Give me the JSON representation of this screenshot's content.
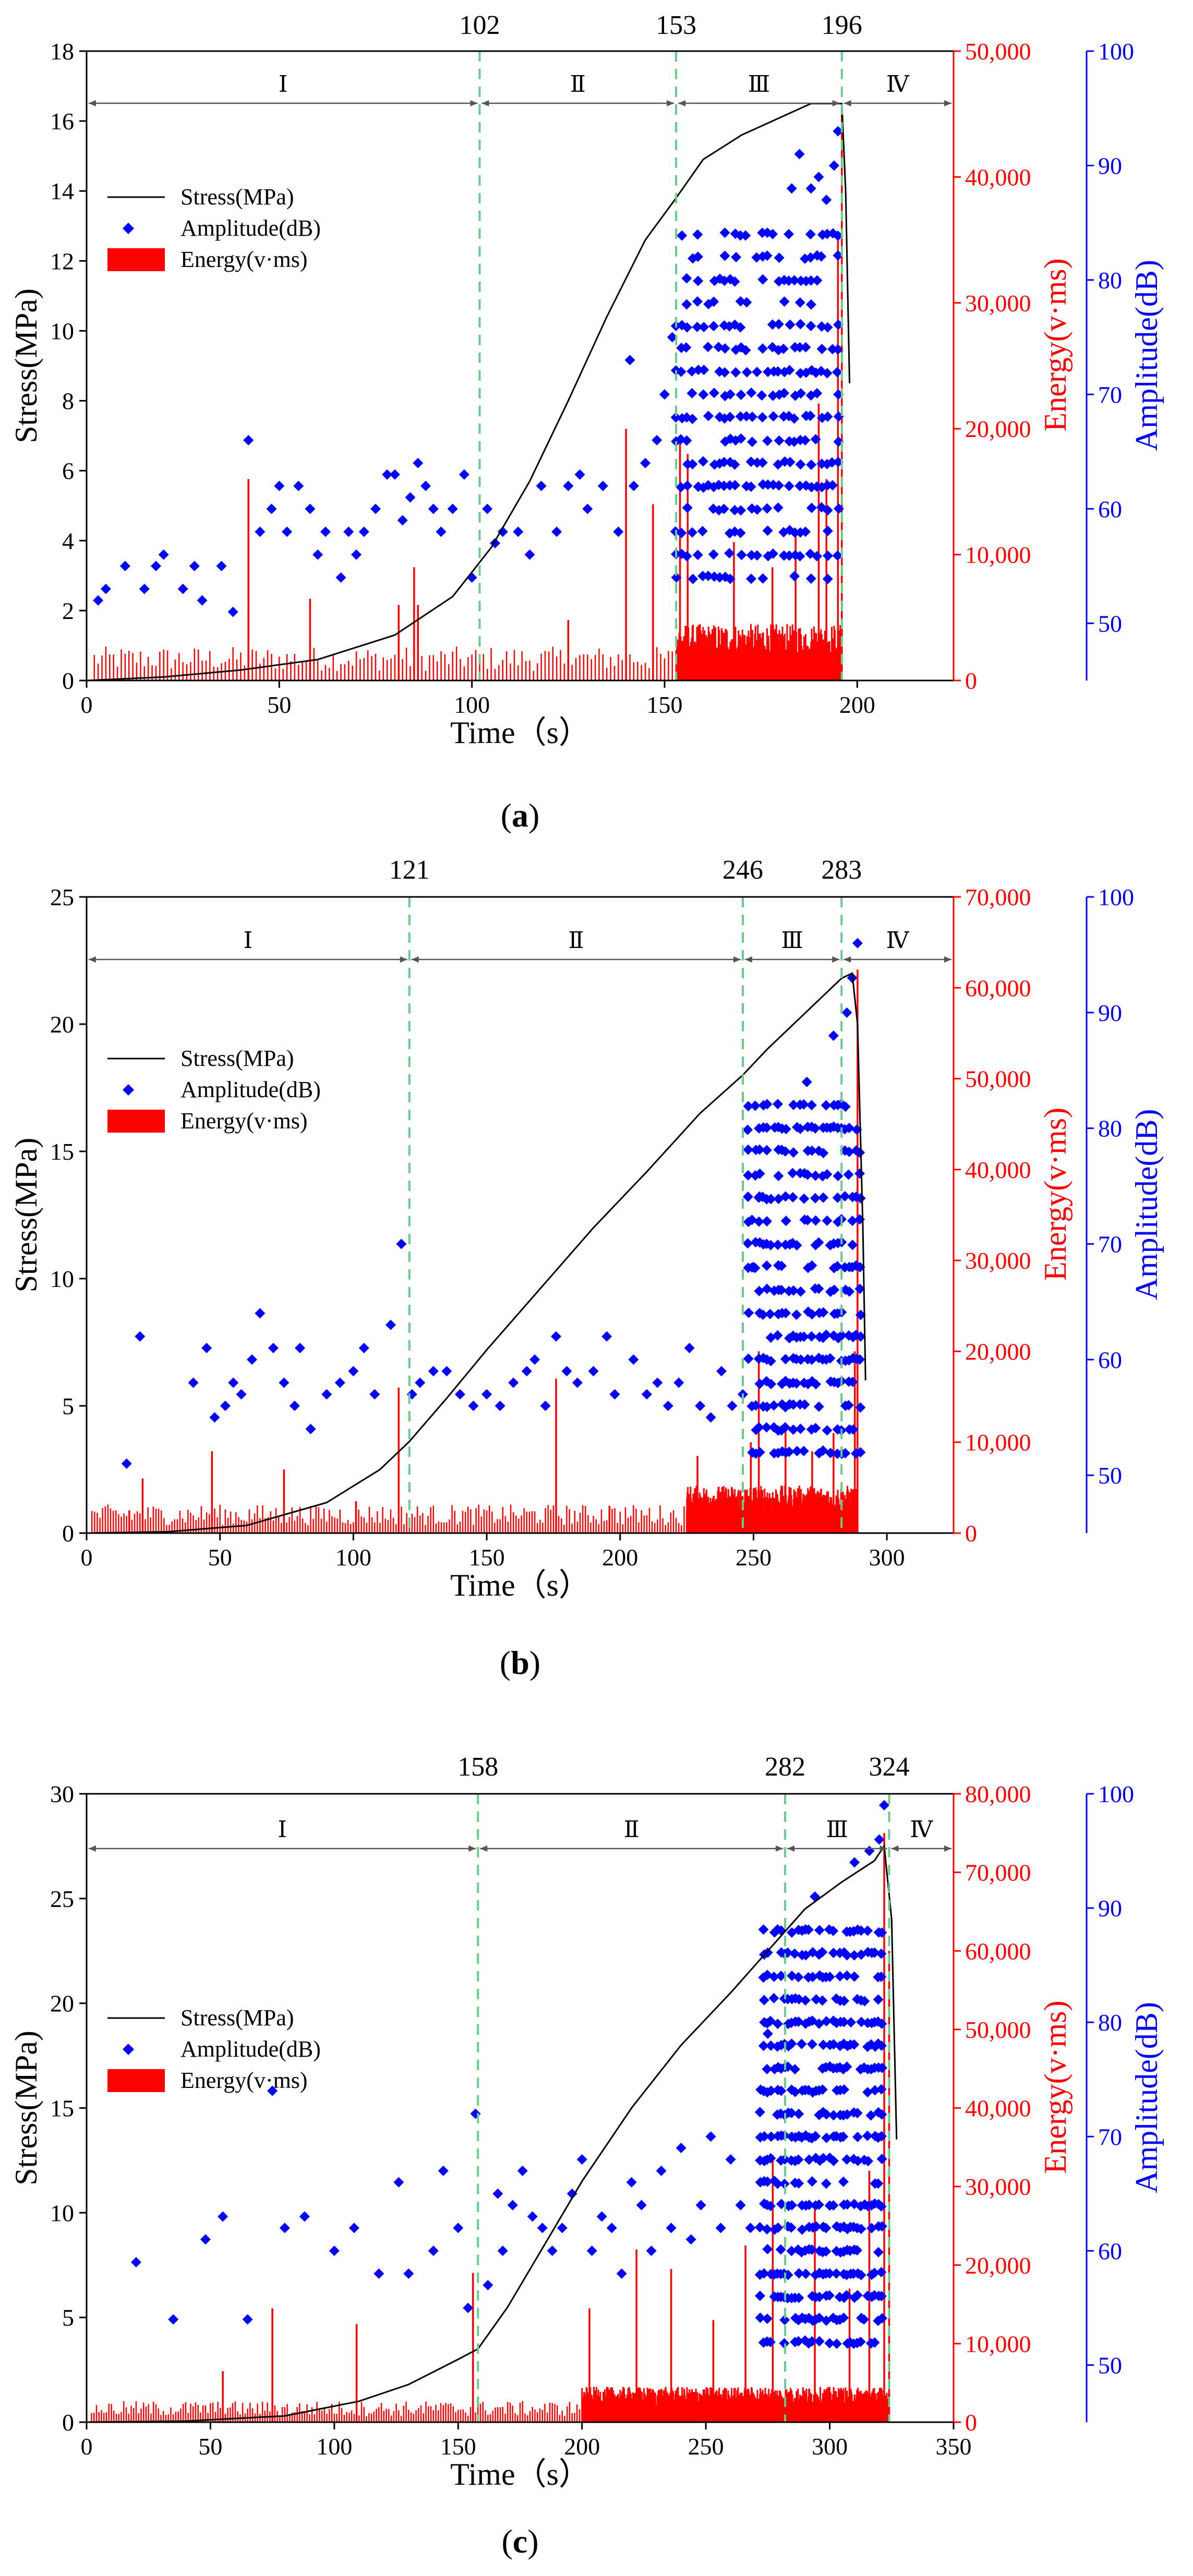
{
  "colors": {
    "stress": "#000000",
    "amplitude": "#0000ff",
    "energy": "#ff0000",
    "boundary": "#66cc88"
  },
  "chart_data": [
    {
      "caption": "(a)",
      "caption_letter": "a",
      "type": "combo",
      "xlabel": "Time（s）",
      "ylabel_stress": "Stress(MPa)",
      "ylabel_energy": "Energy(v·ms)",
      "ylabel_amplitude": "Amplitude(dB)",
      "xlim": [
        0,
        225
      ],
      "xticks": [
        0,
        50,
        100,
        150,
        200
      ],
      "stress_lim": [
        0,
        18
      ],
      "stress_ticks": [
        0,
        2,
        4,
        6,
        8,
        10,
        12,
        14,
        16,
        18
      ],
      "energy_lim": [
        0,
        50000
      ],
      "energy_ticks": [
        0,
        10000,
        20000,
        30000,
        40000,
        50000
      ],
      "energy_tick_labels": [
        "0",
        "10,000",
        "20,000",
        "30,000",
        "40,000",
        "50,000"
      ],
      "amp_lim": [
        45,
        100
      ],
      "amp_ticks": [
        50,
        60,
        70,
        80,
        90,
        100
      ],
      "boundaries": [
        102,
        153,
        196
      ],
      "boundary_labels": [
        "102",
        "153",
        "196"
      ],
      "stages": [
        "Ⅰ",
        "Ⅱ",
        "Ⅲ",
        "Ⅳ"
      ],
      "legend": [
        "Stress(MPa)",
        "Amplitude(dB)",
        "Energy(v·ms)"
      ],
      "stress_curve": [
        [
          0,
          0
        ],
        [
          20,
          0.1
        ],
        [
          40,
          0.3
        ],
        [
          60,
          0.6
        ],
        [
          80,
          1.3
        ],
        [
          95,
          2.4
        ],
        [
          105,
          3.8
        ],
        [
          115,
          5.7
        ],
        [
          125,
          8
        ],
        [
          135,
          10.4
        ],
        [
          145,
          12.6
        ],
        [
          153,
          13.8
        ],
        [
          160,
          14.9
        ],
        [
          170,
          15.6
        ],
        [
          180,
          16.1
        ],
        [
          188,
          16.5
        ],
        [
          196,
          16.5
        ],
        [
          197,
          14
        ],
        [
          198,
          8.5
        ]
      ],
      "energy_spikes": [
        [
          42,
          16000
        ],
        [
          58,
          6500
        ],
        [
          81,
          6000
        ],
        [
          85,
          9000
        ],
        [
          86,
          6000
        ],
        [
          125,
          4800
        ],
        [
          140,
          20000
        ],
        [
          147,
          14000
        ],
        [
          154,
          19000
        ],
        [
          156,
          18000
        ],
        [
          168,
          11000
        ],
        [
          178,
          9000
        ],
        [
          184,
          12000
        ],
        [
          190,
          22000
        ],
        [
          192,
          16000
        ],
        [
          195,
          35000
        ],
        [
          196,
          45000
        ]
      ],
      "energy_base_level": 3000,
      "energy_dense_range": [
        153,
        196
      ],
      "amplitude_sparse": [
        [
          3,
          52
        ],
        [
          5,
          53
        ],
        [
          10,
          55
        ],
        [
          15,
          53
        ],
        [
          18,
          55
        ],
        [
          20,
          56
        ],
        [
          25,
          53
        ],
        [
          28,
          55
        ],
        [
          30,
          52
        ],
        [
          35,
          55
        ],
        [
          38,
          51
        ],
        [
          42,
          66
        ],
        [
          45,
          58
        ],
        [
          48,
          60
        ],
        [
          50,
          62
        ],
        [
          52,
          58
        ],
        [
          55,
          62
        ],
        [
          58,
          60
        ],
        [
          60,
          56
        ],
        [
          62,
          58
        ],
        [
          66,
          54
        ],
        [
          68,
          58
        ],
        [
          70,
          56
        ],
        [
          72,
          58
        ],
        [
          75,
          60
        ],
        [
          78,
          63
        ],
        [
          80,
          63
        ],
        [
          82,
          59
        ],
        [
          84,
          61
        ],
        [
          86,
          64
        ],
        [
          88,
          62
        ],
        [
          90,
          60
        ],
        [
          92,
          58
        ],
        [
          95,
          60
        ],
        [
          98,
          63
        ],
        [
          100,
          54
        ],
        [
          104,
          60
        ],
        [
          106,
          57
        ],
        [
          108,
          58
        ],
        [
          112,
          58
        ],
        [
          115,
          56
        ],
        [
          118,
          62
        ],
        [
          122,
          58
        ],
        [
          125,
          62
        ],
        [
          128,
          63
        ],
        [
          130,
          60
        ],
        [
          134,
          62
        ],
        [
          138,
          58
        ],
        [
          141,
          73
        ],
        [
          142,
          62
        ],
        [
          145,
          64
        ],
        [
          148,
          66
        ],
        [
          150,
          70
        ],
        [
          152,
          75
        ]
      ],
      "amplitude_dense": {
        "range": [
          153,
          196
        ],
        "min": 54,
        "max": 85,
        "top_points": [
          [
            183,
            88
          ],
          [
            185,
            91
          ],
          [
            188,
            88
          ],
          [
            190,
            89
          ],
          [
            192,
            87
          ],
          [
            194,
            90
          ],
          [
            195,
            93
          ]
        ]
      }
    },
    {
      "caption": "(b)",
      "caption_letter": "b",
      "type": "combo",
      "xlabel": "Time（s）",
      "ylabel_stress": "Stress(MPa)",
      "ylabel_energy": "Energy(v·ms)",
      "ylabel_amplitude": "Amplitude(dB)",
      "xlim": [
        0,
        325
      ],
      "xticks": [
        0,
        50,
        100,
        150,
        200,
        250,
        300
      ],
      "stress_lim": [
        0,
        25
      ],
      "stress_ticks": [
        0,
        5,
        10,
        15,
        20,
        25
      ],
      "energy_lim": [
        0,
        70000
      ],
      "energy_ticks": [
        0,
        10000,
        20000,
        30000,
        40000,
        50000,
        60000,
        70000
      ],
      "energy_tick_labels": [
        "0",
        "10,000",
        "20,000",
        "30,000",
        "40,000",
        "50,000",
        "60,000",
        "70,000"
      ],
      "amp_lim": [
        45,
        100
      ],
      "amp_ticks": [
        50,
        60,
        70,
        80,
        90,
        100
      ],
      "boundaries": [
        121,
        246,
        283
      ],
      "boundary_labels": [
        "121",
        "246",
        "283"
      ],
      "stages": [
        "Ⅰ",
        "Ⅱ",
        "Ⅲ",
        "Ⅳ"
      ],
      "legend": [
        "Stress(MPa)",
        "Amplitude(dB)",
        "Energy(v·ms)"
      ],
      "stress_curve": [
        [
          0,
          0
        ],
        [
          30,
          0.05
        ],
        [
          60,
          0.3
        ],
        [
          90,
          1.2
        ],
        [
          110,
          2.5
        ],
        [
          121,
          3.6
        ],
        [
          135,
          5.3
        ],
        [
          150,
          7.2
        ],
        [
          170,
          9.6
        ],
        [
          190,
          12
        ],
        [
          210,
          14.2
        ],
        [
          230,
          16.5
        ],
        [
          246,
          18
        ],
        [
          255,
          19
        ],
        [
          265,
          20
        ],
        [
          275,
          21
        ],
        [
          283,
          21.8
        ],
        [
          287,
          22
        ],
        [
          289,
          20
        ],
        [
          291,
          12
        ],
        [
          292,
          6
        ]
      ],
      "energy_spikes": [
        [
          16,
          2500
        ],
        [
          21,
          6000
        ],
        [
          47,
          9000
        ],
        [
          74,
          7000
        ],
        [
          101,
          3500
        ],
        [
          117,
          16000
        ],
        [
          176,
          17000
        ],
        [
          196,
          3000
        ],
        [
          229,
          8500
        ],
        [
          249,
          10000
        ],
        [
          252,
          20000
        ],
        [
          262,
          12000
        ],
        [
          272,
          9000
        ],
        [
          280,
          11000
        ],
        [
          288,
          20000
        ],
        [
          289,
          62000
        ]
      ],
      "energy_base_level": 3500,
      "energy_dense_range": [
        225,
        289
      ],
      "amplitude_sparse": [
        [
          15,
          51
        ],
        [
          20,
          62
        ],
        [
          40,
          58
        ],
        [
          45,
          61
        ],
        [
          48,
          55
        ],
        [
          52,
          56
        ],
        [
          55,
          58
        ],
        [
          58,
          57
        ],
        [
          62,
          60
        ],
        [
          65,
          64
        ],
        [
          70,
          61
        ],
        [
          74,
          58
        ],
        [
          78,
          56
        ],
        [
          80,
          61
        ],
        [
          84,
          54
        ],
        [
          90,
          57
        ],
        [
          95,
          58
        ],
        [
          100,
          59
        ],
        [
          104,
          61
        ],
        [
          108,
          57
        ],
        [
          114,
          63
        ],
        [
          118,
          70
        ],
        [
          122,
          57
        ],
        [
          125,
          58
        ],
        [
          130,
          59
        ],
        [
          135,
          59
        ],
        [
          140,
          57
        ],
        [
          145,
          56
        ],
        [
          150,
          57
        ],
        [
          155,
          56
        ],
        [
          160,
          58
        ],
        [
          165,
          59
        ],
        [
          168,
          60
        ],
        [
          172,
          56
        ],
        [
          176,
          62
        ],
        [
          180,
          59
        ],
        [
          184,
          58
        ],
        [
          190,
          59
        ],
        [
          195,
          62
        ],
        [
          198,
          57
        ],
        [
          205,
          60
        ],
        [
          210,
          57
        ],
        [
          214,
          58
        ],
        [
          218,
          56
        ],
        [
          222,
          58
        ],
        [
          226,
          61
        ],
        [
          230,
          56
        ],
        [
          234,
          55
        ],
        [
          238,
          59
        ],
        [
          242,
          56
        ],
        [
          246,
          57
        ],
        [
          250,
          68
        ],
        [
          252,
          74
        ]
      ],
      "amplitude_dense": {
        "range": [
          248,
          290
        ],
        "min": 52,
        "max": 82,
        "top_points": [
          [
            270,
            84
          ],
          [
            280,
            88
          ],
          [
            285,
            90
          ],
          [
            287,
            93
          ],
          [
            289,
            96
          ]
        ]
      }
    },
    {
      "caption": "(c)",
      "caption_letter": "c",
      "type": "combo",
      "xlabel": "Time（s）",
      "ylabel_stress": "Stress(MPa)",
      "ylabel_energy": "Energy(v·ms)",
      "ylabel_amplitude": "Amplitude(dB)",
      "xlim": [
        0,
        350
      ],
      "xticks": [
        0,
        50,
        100,
        150,
        200,
        250,
        300,
        350
      ],
      "stress_lim": [
        0,
        30
      ],
      "stress_ticks": [
        0,
        5,
        10,
        15,
        20,
        25,
        30
      ],
      "energy_lim": [
        0,
        80000
      ],
      "energy_ticks": [
        0,
        10000,
        20000,
        30000,
        40000,
        50000,
        60000,
        70000,
        80000
      ],
      "energy_tick_labels": [
        "0",
        "10,000",
        "20,000",
        "30,000",
        "40,000",
        "50,000",
        "60,000",
        "70,000",
        "80,000"
      ],
      "amp_lim": [
        45,
        100
      ],
      "amp_ticks": [
        50,
        60,
        70,
        80,
        90,
        100
      ],
      "boundaries": [
        158,
        282,
        324
      ],
      "boundary_labels": [
        "158",
        "282",
        "324"
      ],
      "stages": [
        "Ⅰ",
        "Ⅱ",
        "Ⅲ",
        "Ⅳ"
      ],
      "legend": [
        "Stress(MPa)",
        "Amplitude(dB)",
        "Energy(v·ms)"
      ],
      "stress_curve": [
        [
          0,
          0
        ],
        [
          40,
          0.05
        ],
        [
          80,
          0.3
        ],
        [
          110,
          1
        ],
        [
          130,
          1.8
        ],
        [
          150,
          3
        ],
        [
          158,
          3.5
        ],
        [
          170,
          5.5
        ],
        [
          185,
          8.5
        ],
        [
          200,
          11.5
        ],
        [
          220,
          15
        ],
        [
          240,
          18
        ],
        [
          260,
          20.5
        ],
        [
          275,
          22.5
        ],
        [
          290,
          24.5
        ],
        [
          305,
          25.8
        ],
        [
          318,
          26.8
        ],
        [
          322,
          27.5
        ],
        [
          325,
          24
        ],
        [
          327,
          13.5
        ]
      ],
      "energy_spikes": [
        [
          55,
          6500
        ],
        [
          75,
          14500
        ],
        [
          109,
          12500
        ],
        [
          156,
          19000
        ],
        [
          203,
          14500
        ],
        [
          222,
          22000
        ],
        [
          236,
          19500
        ],
        [
          253,
          13000
        ],
        [
          266,
          22500
        ],
        [
          277,
          34000
        ],
        [
          294,
          28000
        ],
        [
          308,
          17000
        ],
        [
          316,
          32000
        ],
        [
          322,
          75000
        ],
        [
          324,
          60000
        ]
      ],
      "energy_base_level": 3000,
      "energy_dense_range": [
        200,
        324
      ],
      "amplitude_sparse": [
        [
          20,
          59
        ],
        [
          35,
          54
        ],
        [
          48,
          61
        ],
        [
          55,
          63
        ],
        [
          65,
          54
        ],
        [
          75,
          74
        ],
        [
          80,
          62
        ],
        [
          88,
          63
        ],
        [
          100,
          60
        ],
        [
          108,
          62
        ],
        [
          118,
          58
        ],
        [
          126,
          66
        ],
        [
          130,
          58
        ],
        [
          140,
          60
        ],
        [
          144,
          67
        ],
        [
          150,
          62
        ],
        [
          154,
          55
        ],
        [
          157,
          72
        ],
        [
          162,
          57
        ],
        [
          166,
          65
        ],
        [
          168,
          60
        ],
        [
          172,
          64
        ],
        [
          176,
          67
        ],
        [
          180,
          63
        ],
        [
          184,
          62
        ],
        [
          188,
          60
        ],
        [
          192,
          62
        ],
        [
          196,
          65
        ],
        [
          200,
          68
        ],
        [
          204,
          60
        ],
        [
          208,
          63
        ],
        [
          212,
          62
        ],
        [
          216,
          58
        ],
        [
          220,
          66
        ],
        [
          224,
          64
        ],
        [
          228,
          60
        ],
        [
          232,
          67
        ],
        [
          236,
          62
        ],
        [
          240,
          69
        ],
        [
          244,
          61
        ],
        [
          248,
          64
        ],
        [
          252,
          70
        ],
        [
          256,
          62
        ],
        [
          260,
          68
        ],
        [
          264,
          64
        ],
        [
          268,
          62
        ],
        [
          272,
          66
        ],
        [
          275,
          79
        ]
      ],
      "amplitude_dense": {
        "range": [
          272,
          322
        ],
        "min": 52,
        "max": 88,
        "top_points": [
          [
            294,
            91
          ],
          [
            310,
            94
          ],
          [
            316,
            95
          ],
          [
            320,
            96
          ],
          [
            322,
            99
          ]
        ]
      }
    }
  ]
}
